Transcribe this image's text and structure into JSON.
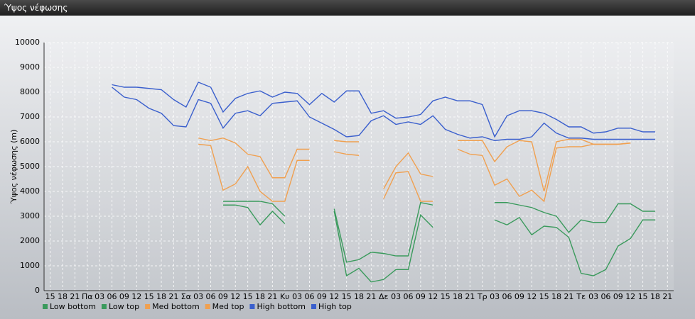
{
  "window": {
    "title": "Ύψος νέφωσης"
  },
  "chart_data": {
    "type": "line",
    "ylabel": "Ύψος νέφωσης (m)",
    "categories": [
      "15",
      "18",
      "21",
      "Πα",
      "03",
      "06",
      "09",
      "12",
      "15",
      "18",
      "21",
      "Σα",
      "03",
      "06",
      "09",
      "12",
      "15",
      "18",
      "21",
      "Κυ",
      "03",
      "06",
      "09",
      "12",
      "15",
      "18",
      "21",
      "Δε",
      "03",
      "06",
      "09",
      "12",
      "15",
      "18",
      "21",
      "Τρ",
      "03",
      "06",
      "09",
      "12",
      "15",
      "18",
      "21",
      "Τε",
      "03",
      "06",
      "09",
      "12",
      "15",
      "18",
      "21"
    ],
    "ylim": [
      0,
      10000
    ],
    "yticks": [
      0,
      1000,
      2000,
      3000,
      4000,
      5000,
      6000,
      7000,
      8000,
      9000,
      10000
    ],
    "grid": true,
    "series": [
      {
        "name": "Low bottom",
        "color": "#3a9a5c",
        "values": [
          null,
          null,
          null,
          null,
          null,
          null,
          null,
          null,
          null,
          null,
          null,
          null,
          null,
          null,
          3450,
          3450,
          3350,
          2650,
          3200,
          2700,
          null,
          null,
          null,
          3200,
          600,
          900,
          350,
          450,
          850,
          850,
          3050,
          2550,
          null,
          null,
          null,
          null,
          2850,
          2650,
          2950,
          2250,
          2600,
          2550,
          2150,
          700,
          600,
          850,
          1800,
          2100,
          2850,
          2850,
          null
        ]
      },
      {
        "name": "Low top",
        "color": "#3a9a5c",
        "values": [
          null,
          null,
          null,
          null,
          null,
          null,
          null,
          null,
          null,
          null,
          null,
          null,
          null,
          null,
          3600,
          3600,
          3600,
          3600,
          3500,
          3000,
          null,
          null,
          null,
          3300,
          1150,
          1250,
          1550,
          1500,
          1400,
          1400,
          3550,
          3450,
          null,
          null,
          null,
          null,
          3550,
          3550,
          3450,
          3350,
          3150,
          3000,
          2350,
          2850,
          2750,
          2750,
          3500,
          3500,
          3200,
          3200,
          null
        ]
      },
      {
        "name": "Med bottom",
        "color": "#f0a050",
        "values": [
          null,
          null,
          null,
          null,
          null,
          null,
          null,
          null,
          null,
          null,
          null,
          null,
          5900,
          5850,
          4050,
          4300,
          5000,
          4000,
          3600,
          3600,
          5250,
          5250,
          null,
          5600,
          5500,
          5450,
          null,
          3700,
          4750,
          4800,
          3600,
          3600,
          null,
          5700,
          5500,
          5450,
          4250,
          4500,
          3800,
          4050,
          3600,
          5750,
          5800,
          5800,
          5900,
          5900,
          5900,
          5950,
          null,
          null,
          null
        ]
      },
      {
        "name": "Med top",
        "color": "#f0a050",
        "values": [
          null,
          null,
          null,
          null,
          null,
          null,
          null,
          null,
          null,
          null,
          null,
          null,
          6150,
          6050,
          6150,
          5950,
          5500,
          5400,
          4550,
          4550,
          5700,
          5700,
          null,
          6050,
          6000,
          6000,
          null,
          4100,
          5000,
          5550,
          4700,
          4600,
          null,
          6050,
          6050,
          6050,
          5200,
          5800,
          6050,
          6000,
          4000,
          6000,
          6100,
          6100,
          5900,
          5900,
          5900,
          5950,
          null,
          null,
          null
        ]
      },
      {
        "name": "High bottom",
        "color": "#3a5fcd",
        "values": [
          null,
          null,
          null,
          null,
          null,
          8200,
          7800,
          7700,
          7350,
          7150,
          6650,
          6600,
          7700,
          7550,
          6550,
          7150,
          7250,
          7050,
          7550,
          7600,
          7650,
          7000,
          6750,
          6500,
          6200,
          6250,
          6850,
          7050,
          6700,
          6800,
          6700,
          7050,
          6500,
          6300,
          6150,
          6200,
          6050,
          6100,
          6100,
          6200,
          6750,
          6350,
          6150,
          6150,
          6100,
          6100,
          6100,
          6100,
          6100,
          6100,
          null
        ]
      },
      {
        "name": "High top",
        "color": "#3a5fcd",
        "values": [
          null,
          null,
          null,
          null,
          null,
          8300,
          8200,
          8200,
          8150,
          8100,
          7700,
          7400,
          8400,
          8200,
          7200,
          7750,
          7950,
          8050,
          7800,
          8000,
          7950,
          7500,
          7950,
          7600,
          8050,
          8050,
          7150,
          7250,
          6950,
          7000,
          7100,
          7650,
          7800,
          7650,
          7650,
          7500,
          6200,
          7050,
          7250,
          7250,
          7150,
          6900,
          6600,
          6600,
          6350,
          6400,
          6550,
          6550,
          6400,
          6400,
          null
        ]
      }
    ]
  }
}
